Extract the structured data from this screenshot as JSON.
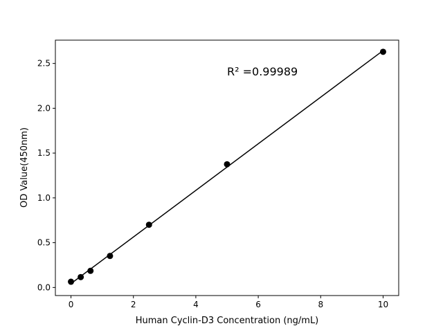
{
  "chart_data": {
    "type": "scatter",
    "title": "",
    "xlabel": "Human Cyclin-D3 Concentration (ng/mL)",
    "ylabel": "OD Value(450nm)",
    "annotation": "R² =0.99989",
    "xlim": [
      -0.5,
      10.5
    ],
    "ylim": [
      -0.09,
      2.76
    ],
    "xticks": [
      0,
      2,
      4,
      6,
      8,
      10
    ],
    "xtick_labels": [
      "0",
      "2",
      "4",
      "6",
      "8",
      "10"
    ],
    "yticks": [
      0.0,
      0.5,
      1.0,
      1.5,
      2.0,
      2.5
    ],
    "ytick_labels": [
      "0.0",
      "0.5",
      "1.0",
      "1.5",
      "2.0",
      "2.5"
    ],
    "grid": false,
    "series": [
      {
        "x": [
          0,
          0.3125,
          0.625,
          1.25,
          2.5,
          5,
          10
        ],
        "y": [
          0.064,
          0.116,
          0.186,
          0.352,
          0.7,
          1.375,
          2.63
        ],
        "marker": "circle",
        "line": "linear fit",
        "color": "#000000"
      }
    ]
  }
}
